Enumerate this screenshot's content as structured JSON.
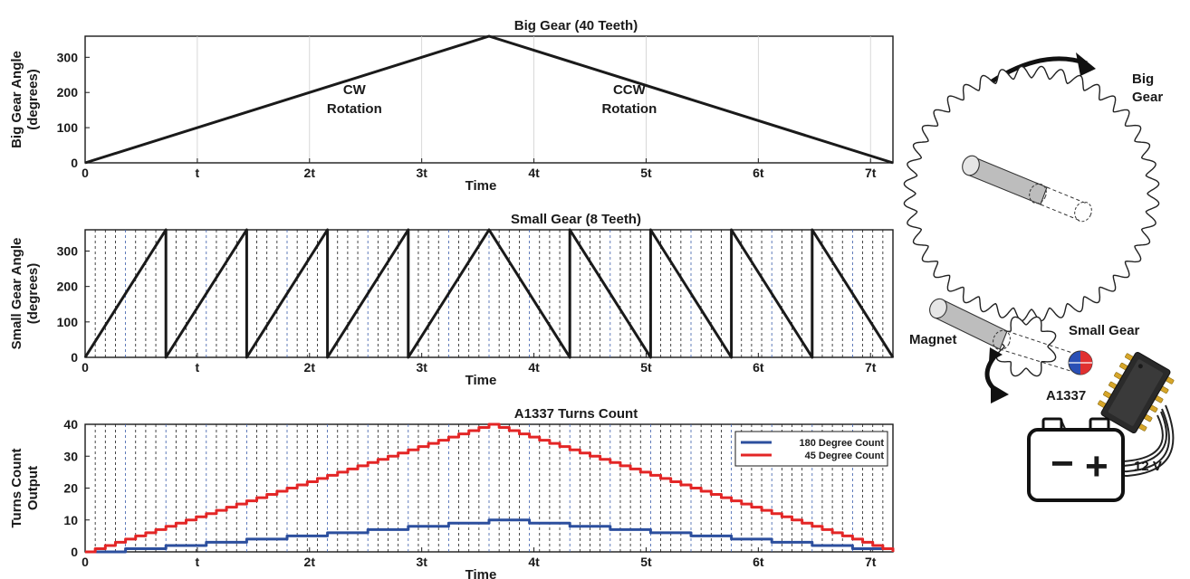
{
  "chart_data": [
    {
      "type": "line",
      "title": "Big Gear (40 Teeth)",
      "xlabel": "Time",
      "ylabel": "Big Gear Angle (degrees)",
      "ylabel_lines": [
        "Big Gear Angle",
        "(degrees)"
      ],
      "xlim": [
        0,
        7.2
      ],
      "ylim": [
        0,
        360
      ],
      "xticks": [
        0,
        1,
        2,
        3,
        4,
        5,
        6,
        7
      ],
      "xtick_labels": [
        "0",
        "t",
        "2t",
        "3t",
        "4t",
        "5t",
        "6t",
        "7t"
      ],
      "yticks": [
        0,
        100,
        200,
        300
      ],
      "ytick_labels": [
        "0",
        "100",
        "200",
        "300"
      ],
      "grid": "vertical at ticks",
      "annotations": [
        {
          "text": [
            "CW",
            "Rotation"
          ],
          "x": 2.4,
          "y": 195
        },
        {
          "text": [
            "CCW",
            "Rotation"
          ],
          "x": 4.85,
          "y": 195
        }
      ],
      "series": [
        {
          "color": "#1a1a1a",
          "x": [
            0,
            3.6,
            7.2
          ],
          "y": [
            0,
            360,
            0
          ]
        }
      ]
    },
    {
      "type": "line",
      "title": "Small Gear (8 Teeth)",
      "xlabel": "Time",
      "ylabel": "Small Gear Angle (degrees)",
      "ylabel_lines": [
        "Small Gear Angle",
        "(degrees)"
      ],
      "xlim": [
        0,
        7.2
      ],
      "ylim": [
        0,
        360
      ],
      "xticks": [
        0,
        1,
        2,
        3,
        4,
        5,
        6,
        7
      ],
      "xtick_labels": [
        "0",
        "t",
        "2t",
        "3t",
        "4t",
        "5t",
        "6t",
        "7t"
      ],
      "yticks": [
        0,
        100,
        200,
        300
      ],
      "ytick_labels": [
        "0",
        "100",
        "200",
        "300"
      ],
      "grid": "dashed vertical lines every 45 degree step",
      "series": [
        {
          "color": "#1a1a1a",
          "x": [
            0,
            0.72,
            0.72,
            1.44,
            1.44,
            2.16,
            2.16,
            2.88,
            2.88,
            3.6,
            4.32,
            4.32,
            5.04,
            5.04,
            5.76,
            5.76,
            6.48,
            6.48,
            7.2
          ],
          "y": [
            0,
            360,
            0,
            360,
            0,
            360,
            0,
            360,
            0,
            360,
            0,
            360,
            0,
            360,
            0,
            360,
            0,
            360,
            0
          ]
        }
      ]
    },
    {
      "type": "line",
      "title": "A1337 Turns Count",
      "xlabel": "Time",
      "ylabel": "Turns Count Output",
      "ylabel_lines": [
        "Turns Count",
        "Output"
      ],
      "xlim": [
        0,
        7.2
      ],
      "ylim": [
        0,
        40
      ],
      "xticks": [
        0,
        1,
        2,
        3,
        4,
        5,
        6,
        7
      ],
      "xtick_labels": [
        "0",
        "t",
        "2t",
        "3t",
        "4t",
        "5t",
        "6t",
        "7t"
      ],
      "yticks": [
        0,
        10,
        20,
        30,
        40
      ],
      "ytick_labels": [
        "0",
        "10",
        "20",
        "30",
        "40"
      ],
      "grid": "dashed vertical lines every 45 degree step",
      "legend": "top-right",
      "series": [
        {
          "name": "180 Degree Count",
          "color": "#2c4f9e",
          "kind": "step",
          "step": 0.36,
          "peak": 10,
          "rise": [
            0,
            3.6
          ],
          "fall": [
            3.6,
            7.2
          ]
        },
        {
          "name": "45 Degree Count",
          "color": "#e32626",
          "kind": "step",
          "step": 0.09,
          "peak": 40,
          "rise": [
            0,
            3.6
          ],
          "fall": [
            3.6,
            7.2
          ]
        }
      ]
    }
  ],
  "diagram": {
    "big_gear_label": [
      "Big",
      "Gear"
    ],
    "small_gear_label": "Small Gear",
    "magnet_label": "Magnet",
    "sensor_label": "A1337",
    "battery_label": "12 V",
    "battery_minus": "−",
    "battery_plus": "+"
  }
}
